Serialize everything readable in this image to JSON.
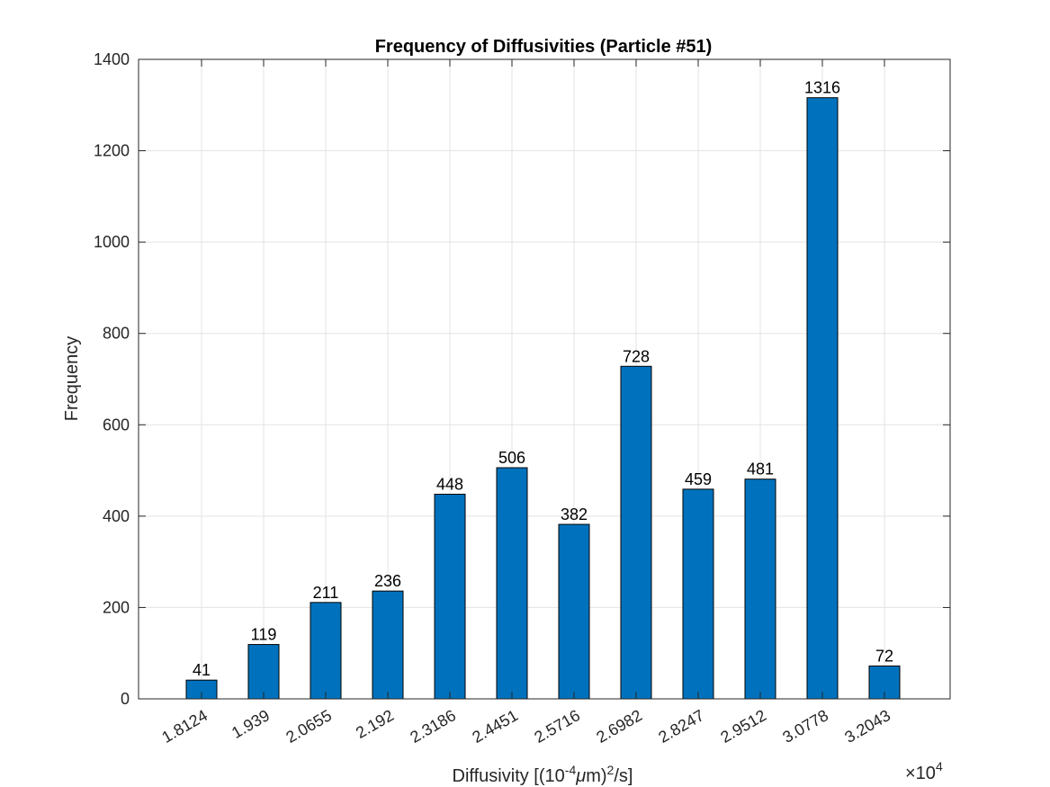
{
  "chart_data": {
    "type": "bar",
    "title": "Frequency of Diffusivities (Particle #51)",
    "xlabel": {
      "prefix": "Diffusivity [(10",
      "exp": "-4",
      "mu": "μ",
      "mid": "m)",
      "exp2": "2",
      "suffix": "/s]"
    },
    "ylabel": "Frequency",
    "x_multiplier": {
      "base": "×10",
      "exp": "4"
    },
    "categories": [
      "1.8124",
      "1.939",
      "2.0655",
      "2.192",
      "2.3186",
      "2.4451",
      "2.5716",
      "2.6982",
      "2.8247",
      "2.9512",
      "3.0778",
      "3.2043"
    ],
    "values": [
      41,
      119,
      211,
      236,
      448,
      506,
      382,
      728,
      459,
      481,
      1316,
      72
    ],
    "data_labels": [
      "41",
      "119",
      "211",
      "236",
      "448",
      "506",
      "382",
      "728",
      "459",
      "481",
      "1316",
      "72"
    ],
    "ylim": [
      0,
      1400
    ],
    "yticks": [
      0,
      200,
      400,
      600,
      800,
      1000,
      1200,
      1400
    ],
    "grid": true,
    "bar_color": "#0072BD"
  }
}
